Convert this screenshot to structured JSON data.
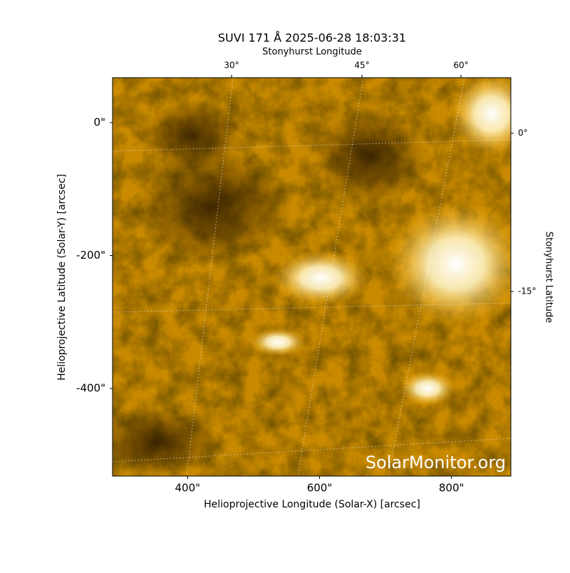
{
  "chart_data": {
    "type": "image",
    "title": "SUVI 171 Å 2025-06-28 18:03:31",
    "xlabel": "Helioprojective Longitude (Solar-X) [arcsec]",
    "ylabel": "Helioprojective Latitude (Solar-Y) [arcsec]",
    "x2label": "Stonyhurst Longitude",
    "y2label": "Stonyhurst Latitude",
    "watermark": "SolarMonitor.org",
    "xlim": [
      286.3,
      890
    ],
    "ylim": [
      -531.9,
      67.6
    ],
    "xticks": [
      {
        "value": 400,
        "label": "400\""
      },
      {
        "value": 600,
        "label": "600\""
      },
      {
        "value": 800,
        "label": "800\""
      }
    ],
    "yticks": [
      {
        "value": 0,
        "label": "0\""
      },
      {
        "value": -200,
        "label": "-200\""
      },
      {
        "value": -400,
        "label": "-400\""
      }
    ],
    "x2ticks": [
      {
        "value": 30,
        "label": "30°"
      },
      {
        "value": 45,
        "label": "45°"
      },
      {
        "value": 60,
        "label": "60°"
      }
    ],
    "y2ticks": [
      {
        "value": 0,
        "label": "0°"
      },
      {
        "value": -15,
        "label": "-15°"
      }
    ]
  }
}
